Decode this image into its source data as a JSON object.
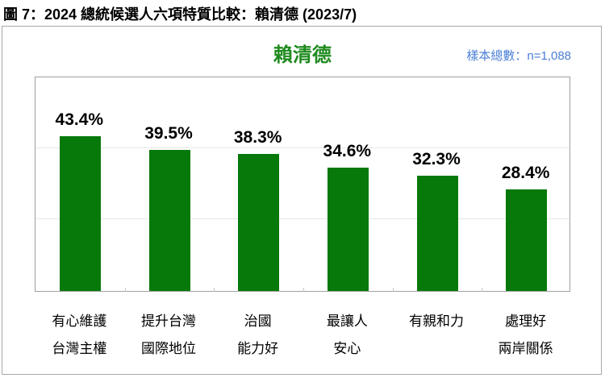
{
  "figure_title": "圖 7：2024 總統候選人六項特質比較：賴清德  (2023/7)",
  "chart_title": "賴清德",
  "sample_size": "樣本總數：n=1,088",
  "colors": {
    "bar": "#07790a",
    "title": "#1e8a1e",
    "sample": "#4a7fd4",
    "gridline": "#e6e6e6"
  },
  "chart_data": {
    "type": "bar",
    "title": "賴清德",
    "subtitle": "樣本總數：n=1,088",
    "categories": [
      "有心維護台灣主權",
      "提升台灣國際地位",
      "治國能力好",
      "最讓人安心",
      "有親和力",
      "處理好兩岸關係"
    ],
    "category_lines": [
      [
        "有心維護",
        "台灣主權"
      ],
      [
        "提升台灣",
        "國際地位"
      ],
      [
        "治國",
        "能力好"
      ],
      [
        "最讓人",
        "安心"
      ],
      [
        "有親和力",
        ""
      ],
      [
        "處理好",
        "兩岸關係"
      ]
    ],
    "values": [
      43.4,
      39.5,
      38.3,
      34.6,
      32.3,
      28.4
    ],
    "value_labels": [
      "43.4%",
      "39.5%",
      "38.3%",
      "34.6%",
      "32.3%",
      "28.4%"
    ],
    "xlabel": "",
    "ylabel": "",
    "ylim": [
      0,
      60
    ],
    "gridlines": [
      20,
      40
    ],
    "y_ticks_shown": false,
    "legend": null,
    "grid": true
  }
}
